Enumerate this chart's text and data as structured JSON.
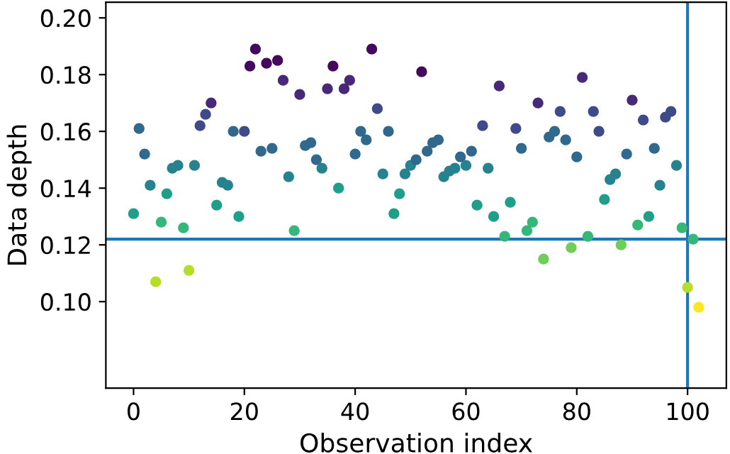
{
  "chart_data": {
    "type": "scatter",
    "xlabel": "Observation index",
    "ylabel": "Data depth",
    "x": [
      0,
      1,
      2,
      3,
      4,
      5,
      6,
      7,
      8,
      9,
      10,
      11,
      12,
      13,
      14,
      15,
      16,
      17,
      18,
      19,
      20,
      21,
      22,
      23,
      24,
      25,
      26,
      27,
      28,
      29,
      30,
      31,
      32,
      33,
      34,
      35,
      36,
      37,
      38,
      39,
      40,
      41,
      42,
      43,
      44,
      45,
      46,
      47,
      48,
      49,
      50,
      51,
      52,
      53,
      54,
      55,
      56,
      57,
      58,
      59,
      60,
      61,
      62,
      63,
      64,
      65,
      66,
      67,
      68,
      69,
      70,
      71,
      72,
      73,
      74,
      75,
      76,
      77,
      78,
      79,
      80,
      81,
      82,
      83,
      84,
      85,
      86,
      87,
      88,
      89,
      90,
      91,
      92,
      93,
      94,
      95,
      96,
      97,
      98,
      99,
      100,
      101,
      102
    ],
    "values": [
      0.131,
      0.161,
      0.152,
      0.141,
      0.107,
      0.128,
      0.138,
      0.147,
      0.148,
      0.126,
      0.111,
      0.148,
      0.162,
      0.166,
      0.17,
      0.134,
      0.142,
      0.141,
      0.16,
      0.13,
      0.16,
      0.183,
      0.189,
      0.153,
      0.184,
      0.154,
      0.185,
      0.178,
      0.144,
      0.125,
      0.173,
      0.155,
      0.156,
      0.15,
      0.147,
      0.175,
      0.183,
      0.14,
      0.175,
      0.178,
      0.152,
      0.16,
      0.157,
      0.189,
      0.168,
      0.145,
      0.16,
      0.131,
      0.138,
      0.145,
      0.148,
      0.15,
      0.181,
      0.153,
      0.156,
      0.157,
      0.144,
      0.146,
      0.147,
      0.151,
      0.148,
      0.153,
      0.134,
      0.162,
      0.147,
      0.13,
      0.176,
      0.123,
      0.135,
      0.161,
      0.154,
      0.125,
      0.128,
      0.17,
      0.115,
      0.158,
      0.16,
      0.167,
      0.157,
      0.119,
      0.151,
      0.179,
      0.123,
      0.167,
      0.16,
      0.136,
      0.143,
      0.145,
      0.12,
      0.152,
      0.171,
      0.127,
      0.164,
      0.13,
      0.154,
      0.141,
      0.165,
      0.167,
      0.148,
      0.126,
      0.105,
      0.122,
      0.098
    ],
    "colors": [
      "#1f9e89",
      "#31688e",
      "#31688e",
      "#26828e",
      "#b5de2b",
      "#35b779",
      "#1f9e89",
      "#26828e",
      "#26828e",
      "#35b779",
      "#b5de2b",
      "#26828e",
      "#3e4a89",
      "#3e4a89",
      "#482878",
      "#1f9e89",
      "#26828e",
      "#26828e",
      "#31688e",
      "#1f9e89",
      "#3e4a89",
      "#46085c",
      "#46085c",
      "#31688e",
      "#46085c",
      "#31688e",
      "#46085c",
      "#482878",
      "#26828e",
      "#35b779",
      "#482878",
      "#31688e",
      "#31688e",
      "#31688e",
      "#26828e",
      "#482878",
      "#46085c",
      "#1f9e89",
      "#482878",
      "#482878",
      "#31688e",
      "#31688e",
      "#31688e",
      "#46085c",
      "#3e4a89",
      "#26828e",
      "#31688e",
      "#1f9e89",
      "#1f9e89",
      "#26828e",
      "#26828e",
      "#31688e",
      "#46085c",
      "#31688e",
      "#31688e",
      "#31688e",
      "#26828e",
      "#26828e",
      "#26828e",
      "#31688e",
      "#26828e",
      "#31688e",
      "#1f9e89",
      "#3e4a89",
      "#26828e",
      "#1f9e89",
      "#482878",
      "#35b779",
      "#1f9e89",
      "#3e4a89",
      "#31688e",
      "#35b779",
      "#35b779",
      "#482878",
      "#6ece58",
      "#31688e",
      "#31688e",
      "#3e4a89",
      "#31688e",
      "#6ece58",
      "#31688e",
      "#482878",
      "#35b779",
      "#3e4a89",
      "#3e4a89",
      "#1f9e89",
      "#26828e",
      "#26828e",
      "#6ece58",
      "#31688e",
      "#482878",
      "#35b779",
      "#3e4a89",
      "#1f9e89",
      "#31688e",
      "#26828e",
      "#3e4a89",
      "#3e4a89",
      "#26828e",
      "#35b779",
      "#b5de2b",
      "#35b779",
      "#fde725"
    ],
    "xlim": [
      -5,
      107
    ],
    "ylim": [
      0.0695,
      0.2055
    ],
    "xticks": [
      0,
      20,
      40,
      60,
      80,
      100
    ],
    "yticks": [
      {
        "value": 0.1,
        "label": "0.10"
      },
      {
        "value": 0.12,
        "label": "0.12"
      },
      {
        "value": 0.14,
        "label": "0.14"
      },
      {
        "value": 0.16,
        "label": "0.16"
      },
      {
        "value": 0.18,
        "label": "0.18"
      },
      {
        "value": 0.2,
        "label": "0.20"
      }
    ],
    "ref_lines": [
      {
        "axis": "y",
        "value": 0.122,
        "color": "#1f77b4"
      },
      {
        "axis": "x",
        "value": 100,
        "color": "#1f77b4"
      }
    ],
    "grid": false,
    "legend": false
  }
}
